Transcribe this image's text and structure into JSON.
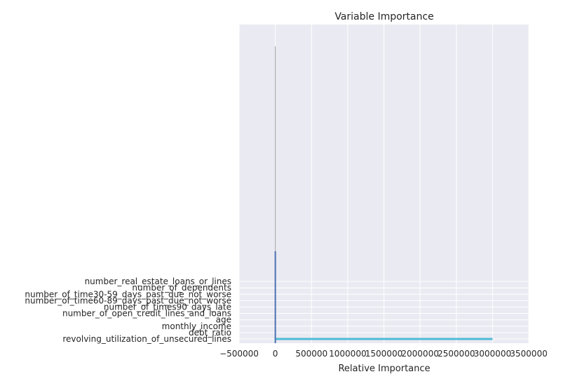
{
  "chart_data": {
    "type": "bar",
    "orientation": "horizontal",
    "title": "Variable Importance",
    "xlabel": "Relative Importance",
    "ylabel": "",
    "xlim": [
      -500000,
      3500000
    ],
    "grid": true,
    "categories": [
      "revolving_utilization_of_unsecured_lines",
      "debt_ratio",
      "monthly_income",
      "age",
      "number_of_open_credit_lines_and_loans",
      "number_of_times90_days_late",
      "number_of_time60-89_days_past_due_not_worse",
      "number_of_time30-59_days_past_due_not_worse",
      "number_of_dependents",
      "number_real_estate_loans_or_lines"
    ],
    "x_ticks": [
      -500000,
      0,
      500000,
      1000000,
      1500000,
      2000000,
      2500000,
      3000000,
      3500000
    ],
    "x_tick_labels": [
      "−500000",
      "0",
      "500000",
      "1000000",
      "1500000",
      "2000000",
      "2500000",
      "3000000",
      "3500000"
    ],
    "values": [
      3000000,
      0,
      0,
      0,
      0,
      0,
      0,
      0,
      0,
      0
    ],
    "bar_colors": [
      "#4dbbd5",
      "#b47cc7",
      "#c4ad66",
      "#77bedb",
      "#64b5cd",
      "#ccb974",
      "#8172b2",
      "#c44e52",
      "#55a868",
      "#4c72b0"
    ],
    "colors": {
      "plot_background": "#eaeaf2",
      "grid": "#ffffff",
      "text": "#262626"
    }
  }
}
